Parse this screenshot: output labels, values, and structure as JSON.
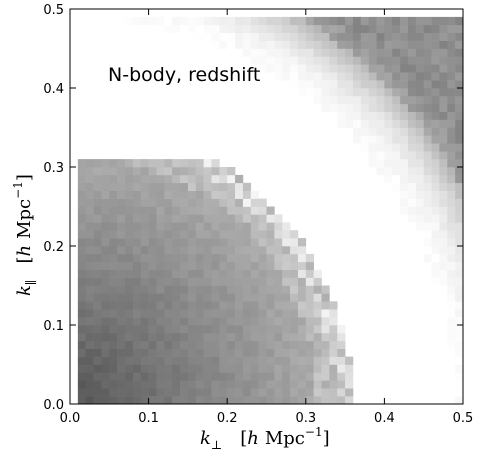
{
  "chart_data": {
    "type": "heatmap",
    "annotation": "N-body, redshift",
    "xlabel": {
      "sym": "k",
      "sub": "⊥",
      "units_open": "[",
      "h": "h",
      "mpc": "Mpc",
      "exp": "−1",
      "units_close": "]"
    },
    "ylabel": {
      "sym": "k",
      "sub": "∥",
      "units_open": "[",
      "h": "h",
      "mpc": "Mpc",
      "exp": "−1",
      "units_close": "]"
    },
    "xlim": [
      0.0,
      0.5
    ],
    "ylim": [
      0.0,
      0.5
    ],
    "xticks": [
      "0.0",
      "0.1",
      "0.2",
      "0.3",
      "0.4",
      "0.5"
    ],
    "yticks": [
      "0.0",
      "0.1",
      "0.2",
      "0.3",
      "0.4",
      "0.5"
    ],
    "bin_width": 0.01,
    "colormap": "grayscale (darker = higher value, white = masked)",
    "regions": [
      {
        "name": "lower-left wedge",
        "kmax": 0.35,
        "k_parallel_max": 0.31,
        "shade": "dark gray"
      },
      {
        "name": "upper-right wedge",
        "kmin": 0.55,
        "kmax": 0.71,
        "shade": "medium gray"
      }
    ]
  }
}
